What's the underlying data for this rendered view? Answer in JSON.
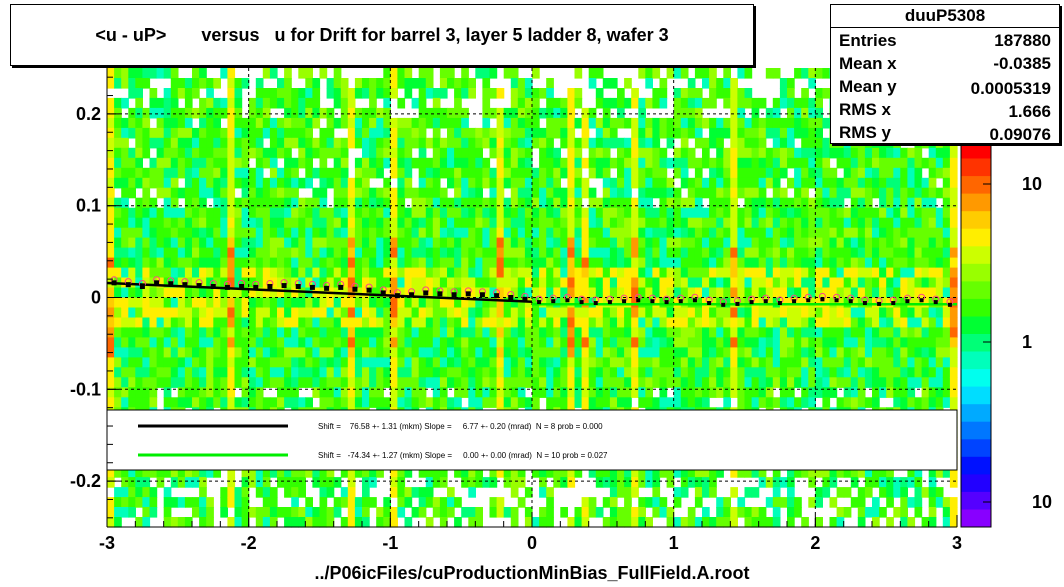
{
  "header": {
    "title": "<u - uP>       versus   u for Drift for barrel 3, layer 5 ladder 8, wafer 3"
  },
  "stats": {
    "name": "duuP5308",
    "rows": [
      {
        "label": "Entries",
        "value": "187880"
      },
      {
        "label": "Mean x",
        "value": "-0.0385"
      },
      {
        "label": "Mean y",
        "value": "0.0005319"
      },
      {
        "label": "RMS x",
        "value": "1.666"
      },
      {
        "label": "RMS y",
        "value": "0.09076"
      }
    ]
  },
  "legend": {
    "line1": "Shift =    76.58 +- 1.31 (mkm) Slope =     6.77 +- 0.20 (mrad)  N = 8 prob = 0.000",
    "line2": "Shift =   -74.34 +- 1.27 (mkm) Slope =     0.00 +- 0.00 (mrad)  N = 10 prob = 0.027",
    "line1_color": "#000000",
    "line2_color": "#00ee00"
  },
  "footer": "../P06icFiles/cuProductionMinBias_FullField.A.root",
  "colorbar": {
    "labels": [
      "10",
      "1",
      "10"
    ],
    "colors": [
      "#ff0000",
      "#ff3300",
      "#ff6600",
      "#ff9900",
      "#ffcc00",
      "#ffee00",
      "#ccff00",
      "#99ff00",
      "#66ff00",
      "#33ff00",
      "#00ff33",
      "#00ff77",
      "#00ffbb",
      "#00ffee",
      "#00ddff",
      "#00aaff",
      "#0077ff",
      "#0044ff",
      "#0011ff",
      "#2200ff",
      "#5500ff",
      "#8800ff"
    ]
  },
  "chart_data": {
    "type": "heatmap",
    "xlim": [
      -3,
      3
    ],
    "ylim": [
      -0.25,
      0.25
    ],
    "x_ticks": [
      -3,
      -2,
      -1,
      0,
      1,
      2,
      3
    ],
    "y_ticks": [
      -0.2,
      -0.1,
      0,
      0.1,
      0.2
    ],
    "y_tick_labels": [
      "-0.2",
      "-0.1",
      "0",
      "0.1",
      "0.2"
    ],
    "x_tick_labels": [
      "-3",
      "-2",
      "-1",
      "0",
      "1",
      "2",
      "3"
    ],
    "colorbar_scale": "log",
    "profile_black": {
      "x": [
        -2.95,
        -2.85,
        -2.75,
        -2.65,
        -2.55,
        -2.45,
        -2.35,
        -2.25,
        -2.15,
        -2.05,
        -1.95,
        -1.85,
        -1.75,
        -1.65,
        -1.55,
        -1.45,
        -1.35,
        -1.25,
        -1.15,
        -1.05,
        -0.95,
        -0.85,
        -0.75,
        -0.65,
        -0.55,
        -0.45,
        -0.35,
        -0.25,
        -0.15,
        -0.05
      ],
      "y": [
        0.016,
        0.014,
        0.012,
        0.016,
        0.015,
        0.014,
        0.013,
        0.012,
        0.011,
        0.012,
        0.011,
        0.012,
        0.013,
        0.012,
        0.011,
        0.01,
        0.011,
        0.009,
        0.008,
        0.005,
        0.002,
        0.003,
        0.005,
        0.004,
        0.003,
        0.004,
        0.003,
        0.002,
        0.0,
        -0.002
      ]
    },
    "profile_green": {
      "x": [
        0.05,
        0.15,
        0.25,
        0.35,
        0.45,
        0.55,
        0.65,
        0.75,
        0.85,
        0.95,
        1.05,
        1.15,
        1.25,
        1.35,
        1.45,
        1.55,
        1.65,
        1.75,
        1.85,
        1.95,
        2.05,
        2.15,
        2.25,
        2.35,
        2.45,
        2.55,
        2.65,
        2.75,
        2.85,
        2.95
      ],
      "y": [
        -0.005,
        -0.004,
        -0.003,
        -0.005,
        -0.006,
        -0.005,
        -0.004,
        -0.003,
        -0.004,
        -0.005,
        -0.004,
        -0.003,
        -0.006,
        -0.008,
        -0.007,
        -0.005,
        -0.004,
        -0.006,
        -0.004,
        -0.003,
        -0.002,
        -0.003,
        -0.004,
        -0.006,
        -0.007,
        -0.006,
        -0.004,
        -0.003,
        -0.005,
        -0.008
      ]
    },
    "fit_lines": [
      {
        "x": [
          -3,
          0
        ],
        "y": [
          0.0158,
          -0.0046
        ],
        "color": "#000000"
      },
      {
        "x": [
          0,
          3
        ],
        "y": [
          -0.0074,
          -0.0074
        ],
        "color": "#00ee00"
      }
    ]
  }
}
